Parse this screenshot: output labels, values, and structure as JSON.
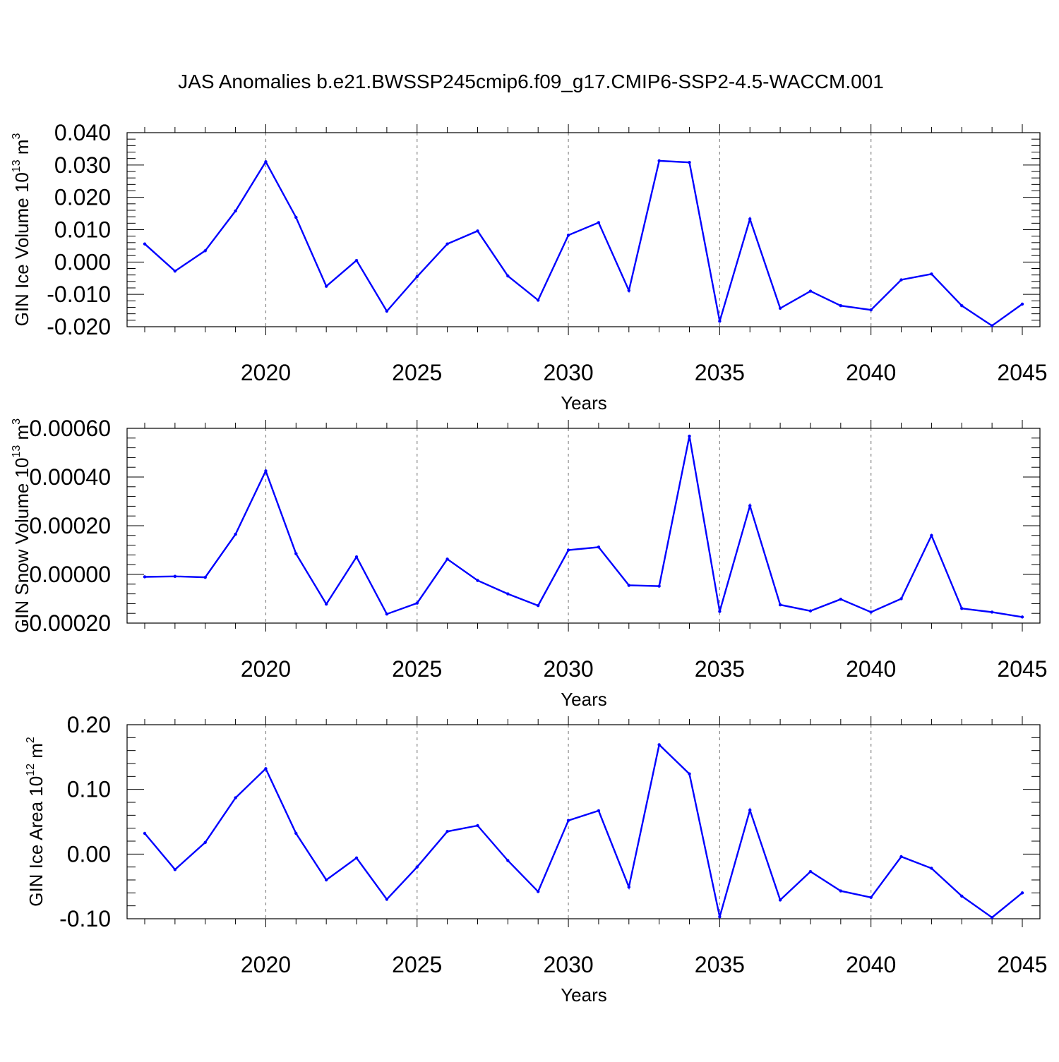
{
  "figure": {
    "title": "JAS Anomalies b.e21.BWSSP245cmip6.f09_g17.CMIP6-SSP2-4.5-WACCM.001"
  },
  "chart_data": [
    {
      "type": "line",
      "title": "JAS Anomalies b.e21.BWSSP245cmip6.f09_g17.CMIP6-SSP2-4.5-WACCM.001",
      "xlabel": "Years",
      "ylabel": "GIN Ice Volume 10",
      "ylabel_exp": "13",
      "ylabel_unit": " m",
      "ylabel_unit_exp": "3",
      "xlim": [
        2016,
        2045
      ],
      "ylim": [
        -0.02,
        0.04
      ],
      "grid": "dashed vertical at major x ticks",
      "color": "#0000ff",
      "x_ticks": [
        2020,
        2025,
        2030,
        2035,
        2040,
        2045
      ],
      "x_tick_labels": [
        "2020",
        "2025",
        "2030",
        "2035",
        "2040",
        "2045"
      ],
      "y_ticks": [
        -0.02,
        -0.01,
        0.0,
        0.01,
        0.02,
        0.03,
        0.04
      ],
      "y_tick_labels": [
        "-0.020",
        "-0.010",
        "0.000",
        "0.010",
        "0.020",
        "0.030",
        "0.040"
      ],
      "x": [
        2016,
        2017,
        2018,
        2019,
        2020,
        2021,
        2022,
        2023,
        2024,
        2025,
        2026,
        2027,
        2028,
        2029,
        2030,
        2031,
        2032,
        2033,
        2034,
        2035,
        2036,
        2037,
        2038,
        2039,
        2040,
        2041,
        2042,
        2043,
        2044,
        2045
      ],
      "values": [
        0.0056,
        -0.0028,
        0.0035,
        0.0158,
        0.031,
        0.0138,
        -0.0075,
        0.0005,
        -0.0152,
        -0.0045,
        0.0056,
        0.0096,
        -0.0043,
        -0.0118,
        0.0083,
        0.0122,
        -0.0088,
        0.0313,
        0.0308,
        -0.0183,
        0.0133,
        -0.0143,
        -0.009,
        -0.0135,
        -0.0148,
        -0.0055,
        -0.0037,
        -0.0135,
        -0.0197,
        -0.013
      ]
    },
    {
      "type": "line",
      "xlabel": "Years",
      "ylabel": "GIN Snow Volume 10",
      "ylabel_exp": "13",
      "ylabel_unit": " m",
      "ylabel_unit_exp": "3",
      "xlim": [
        2016,
        2045
      ],
      "ylim": [
        -0.0002,
        0.0006
      ],
      "grid": "dashed vertical at major x ticks",
      "color": "#0000ff",
      "x_ticks": [
        2020,
        2025,
        2030,
        2035,
        2040,
        2045
      ],
      "x_tick_labels": [
        "2020",
        "2025",
        "2030",
        "2035",
        "2040",
        "2045"
      ],
      "y_ticks": [
        -0.0002,
        0.0,
        0.0002,
        0.0004,
        0.0006
      ],
      "y_tick_labels": [
        "-0.00020",
        "0.00000",
        "0.00020",
        "0.00040",
        "0.00060"
      ],
      "x": [
        2016,
        2017,
        2018,
        2019,
        2020,
        2021,
        2022,
        2023,
        2024,
        2025,
        2026,
        2027,
        2028,
        2029,
        2030,
        2031,
        2032,
        2033,
        2034,
        2035,
        2036,
        2037,
        2038,
        2039,
        2040,
        2041,
        2042,
        2043,
        2044,
        2045
      ],
      "values": [
        -1e-05,
        -8e-06,
        -1.2e-05,
        0.000165,
        0.000425,
        8.5e-05,
        -0.000122,
        7.2e-05,
        -0.000163,
        -0.000118,
        6.3e-05,
        -2.5e-05,
        -8e-05,
        -0.000128,
        0.0001,
        0.000112,
        -4.5e-05,
        -4.8e-05,
        0.000568,
        -0.000152,
        0.000282,
        -0.000125,
        -0.00015,
        -0.000102,
        -0.000155,
        -0.0001,
        0.00016,
        -0.00014,
        -0.000155,
        -0.000175
      ]
    },
    {
      "type": "line",
      "xlabel": "Years",
      "ylabel": "GIN Ice Area 10",
      "ylabel_exp": "12",
      "ylabel_unit": " m",
      "ylabel_unit_exp": "2",
      "xlim": [
        2016,
        2045
      ],
      "ylim": [
        -0.1,
        0.2
      ],
      "grid": "dashed vertical at major x ticks",
      "color": "#0000ff",
      "x_ticks": [
        2020,
        2025,
        2030,
        2035,
        2040,
        2045
      ],
      "x_tick_labels": [
        "2020",
        "2025",
        "2030",
        "2035",
        "2040",
        "2045"
      ],
      "y_ticks": [
        -0.1,
        0.0,
        0.1,
        0.2
      ],
      "y_tick_labels": [
        "-0.10",
        "0.00",
        "0.10",
        "0.20"
      ],
      "x": [
        2016,
        2017,
        2018,
        2019,
        2020,
        2021,
        2022,
        2023,
        2024,
        2025,
        2026,
        2027,
        2028,
        2029,
        2030,
        2031,
        2032,
        2033,
        2034,
        2035,
        2036,
        2037,
        2038,
        2039,
        2040,
        2041,
        2042,
        2043,
        2044,
        2045
      ],
      "values": [
        0.032,
        -0.024,
        0.018,
        0.087,
        0.132,
        0.032,
        -0.04,
        -0.006,
        -0.07,
        -0.02,
        0.035,
        0.044,
        -0.01,
        -0.058,
        0.052,
        0.067,
        -0.051,
        0.169,
        0.124,
        -0.097,
        0.068,
        -0.071,
        -0.027,
        -0.057,
        -0.067,
        -0.004,
        -0.022,
        -0.065,
        -0.098,
        -0.06
      ]
    }
  ]
}
